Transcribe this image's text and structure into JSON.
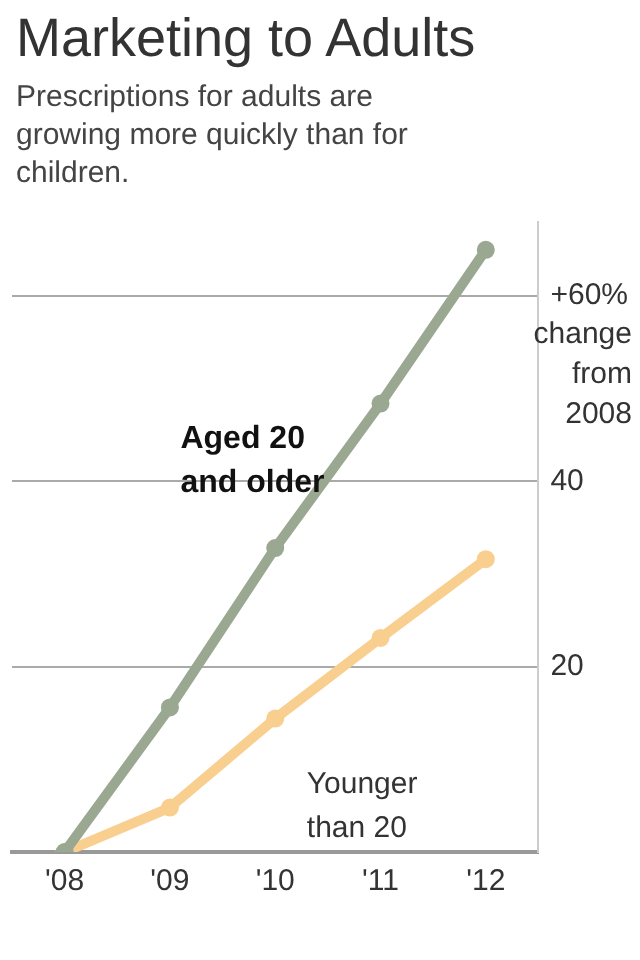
{
  "chart_data": {
    "type": "line",
    "title": "Marketing to Adults",
    "subtitle": "Prescriptions for adults are growing more quickly than for children.",
    "ylabel": "change from 2008",
    "categories": [
      "'08",
      "'09",
      "'10",
      "'11",
      "'12"
    ],
    "series": [
      {
        "name": "Aged 20 and older",
        "color": "#9aa891",
        "values": [
          0,
          15.6,
          32.8,
          48.4,
          65
        ]
      },
      {
        "name": "Younger than 20",
        "color": "#f9cf8f",
        "values": [
          0,
          4.8,
          14.4,
          23.1,
          31.6
        ]
      }
    ],
    "ylim": [
      0,
      68
    ],
    "yticks": [
      20,
      40,
      {
        "value": 60,
        "label": "+60%"
      }
    ],
    "grid": "y",
    "legend": false,
    "marker": "circle",
    "line_style": "solid"
  }
}
